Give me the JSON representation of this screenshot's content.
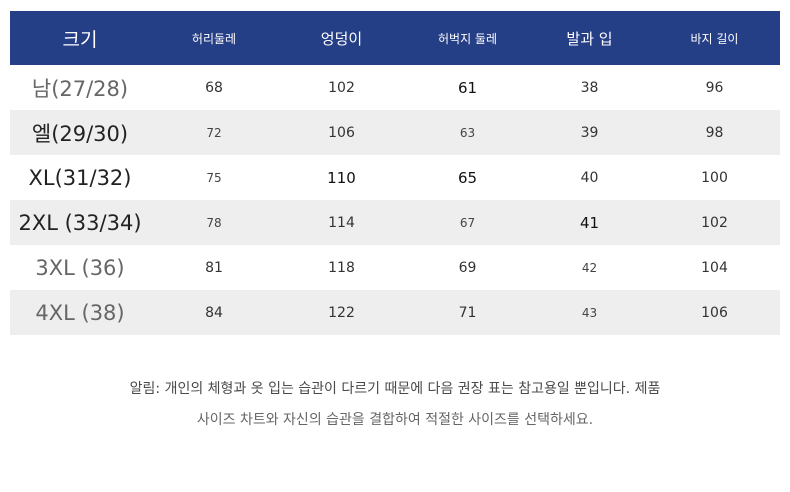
{
  "table": {
    "headers": [
      "크기",
      "허리둘레",
      "엉덩이",
      "허벅지 둘레",
      "발과 입",
      "바지 길이"
    ],
    "rows": [
      [
        "남(27/28)",
        "68",
        "102",
        "61",
        "38",
        "96"
      ],
      [
        "엘(29/30)",
        "72",
        "106",
        "63",
        "39",
        "98"
      ],
      [
        "XL(31/32)",
        "75",
        "110",
        "65",
        "40",
        "100"
      ],
      [
        "2XL (33/34)",
        "78",
        "114",
        "67",
        "41",
        "102"
      ],
      [
        "3XL (36)",
        "81",
        "118",
        "69",
        "42",
        "104"
      ],
      [
        "4XL (38)",
        "84",
        "122",
        "71",
        "43",
        "106"
      ]
    ]
  },
  "notice": {
    "line1": "알림: 개인의 체형과 옷 입는 습관이 다르기 때문에 다음 권장 표는 참고용일 뿐입니다. 제품",
    "line2": "사이즈 차트와 자신의 습관을 결합하여 적절한 사이즈를 선택하세요."
  },
  "colors": {
    "header_bg": "#253f87",
    "header_text": "#ffffff",
    "alt_row_bg": "#eeeeee"
  }
}
